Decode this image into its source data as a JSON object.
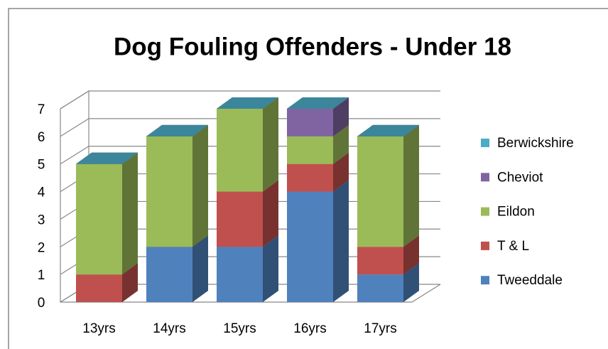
{
  "chart_data": {
    "type": "bar3d-stacked",
    "title": "Dog Fouling Offenders - Under 18",
    "categories": [
      "13yrs",
      "14yrs",
      "15yrs",
      "16yrs",
      "17yrs"
    ],
    "series": [
      {
        "name": "Tweeddale",
        "color": "#4f81bd",
        "values": [
          0,
          2,
          2,
          4,
          1
        ]
      },
      {
        "name": "T & L",
        "color": "#c0504d",
        "values": [
          1,
          0,
          2,
          1,
          1
        ]
      },
      {
        "name": "Eildon",
        "color": "#9bbb59",
        "values": [
          4,
          4,
          3,
          1,
          4
        ]
      },
      {
        "name": "Cheviot",
        "color": "#8064a2",
        "values": [
          0,
          0,
          0,
          1,
          0
        ]
      },
      {
        "name": "Berwickshire",
        "color": "#4bacc6",
        "values": [
          0,
          0,
          0,
          0,
          0
        ]
      }
    ],
    "ylim": [
      0,
      7
    ],
    "yticks": [
      0,
      1,
      2,
      3,
      4,
      5,
      6,
      7
    ],
    "grid": true,
    "legend": "right"
  }
}
